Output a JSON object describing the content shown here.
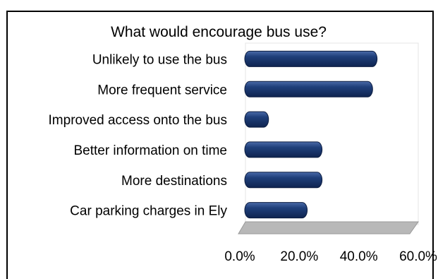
{
  "chart_data": {
    "type": "bar",
    "orientation": "horizontal",
    "title": "What would encourage bus use?",
    "categories": [
      "Unlikely to use the bus",
      "More frequent service",
      "Improved access onto the bus",
      "Better information on time",
      "More destinations",
      "Car parking charges in Ely"
    ],
    "values": [
      44.5,
      43.0,
      8.0,
      26.0,
      26.0,
      21.0
    ],
    "xlim": [
      0,
      60
    ],
    "x_ticks": [
      "0.0%",
      "20.0%",
      "40.0%",
      "60.0%"
    ],
    "x_tick_values": [
      0,
      20,
      40,
      60
    ],
    "colors": {
      "bar": "#1f3f7a",
      "bar_highlight": "#5a7ab8",
      "floor": "#b8b8b8"
    }
  }
}
